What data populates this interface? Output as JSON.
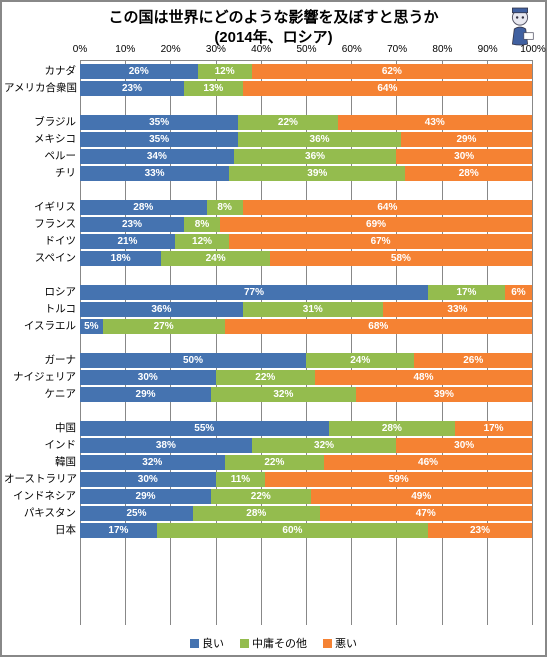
{
  "chart": {
    "type": "stacked-bar-horizontal",
    "title_line1": "この国は世界にどのような影響を及ぼすと思うか",
    "title_line2": "(2014年、ロシア)",
    "title_fontsize": 15,
    "background": "#ffffff",
    "border_color": "#888888",
    "grid_color": "#888888",
    "xaxis": {
      "min": 0,
      "max": 100,
      "tick_step": 10,
      "ticks": [
        "0%",
        "10%",
        "20%",
        "30%",
        "40%",
        "50%",
        "60%",
        "70%",
        "80%",
        "90%",
        "100%"
      ]
    },
    "series": [
      {
        "key": "good",
        "label": "良い",
        "color": "#4573b0"
      },
      {
        "key": "neutral",
        "label": "中庸その他",
        "color": "#94bc4e"
      },
      {
        "key": "bad",
        "label": "悪い",
        "color": "#f58233"
      }
    ],
    "groups": [
      {
        "rows": [
          {
            "label": "カナダ",
            "good": 26,
            "neutral": 12,
            "bad": 62
          },
          {
            "label": "アメリカ合衆国",
            "good": 23,
            "neutral": 13,
            "bad": 64
          }
        ]
      },
      {
        "rows": [
          {
            "label": "ブラジル",
            "good": 35,
            "neutral": 22,
            "bad": 43
          },
          {
            "label": "メキシコ",
            "good": 35,
            "neutral": 36,
            "bad": 29
          },
          {
            "label": "ペルー",
            "good": 34,
            "neutral": 36,
            "bad": 30
          },
          {
            "label": "チリ",
            "good": 33,
            "neutral": 39,
            "bad": 28
          }
        ]
      },
      {
        "rows": [
          {
            "label": "イギリス",
            "good": 28,
            "neutral": 8,
            "bad": 64
          },
          {
            "label": "フランス",
            "good": 23,
            "neutral": 8,
            "bad": 69
          },
          {
            "label": "ドイツ",
            "good": 21,
            "neutral": 12,
            "bad": 67
          },
          {
            "label": "スペイン",
            "good": 18,
            "neutral": 24,
            "bad": 58
          }
        ]
      },
      {
        "rows": [
          {
            "label": "ロシア",
            "good": 77,
            "neutral": 17,
            "bad": 6
          },
          {
            "label": "トルコ",
            "good": 36,
            "neutral": 31,
            "bad": 33
          },
          {
            "label": "イスラエル",
            "good": 5,
            "neutral": 27,
            "bad": 68
          }
        ]
      },
      {
        "rows": [
          {
            "label": "ガーナ",
            "good": 50,
            "neutral": 24,
            "bad": 26
          },
          {
            "label": "ナイジェリア",
            "good": 30,
            "neutral": 22,
            "bad": 48
          },
          {
            "label": "ケニア",
            "good": 29,
            "neutral": 32,
            "bad": 39
          }
        ]
      },
      {
        "rows": [
          {
            "label": "中国",
            "good": 55,
            "neutral": 28,
            "bad": 17
          },
          {
            "label": "インド",
            "good": 38,
            "neutral": 32,
            "bad": 30
          },
          {
            "label": "韓国",
            "good": 32,
            "neutral": 22,
            "bad": 46
          },
          {
            "label": "オーストラリア",
            "good": 30,
            "neutral": 11,
            "bad": 59
          },
          {
            "label": "インドネシア",
            "good": 29,
            "neutral": 22,
            "bad": 49
          },
          {
            "label": "パキスタン",
            "good": 25,
            "neutral": 28,
            "bad": 47
          },
          {
            "label": "日本",
            "good": 17,
            "neutral": 60,
            "bad": 23
          }
        ]
      }
    ]
  }
}
